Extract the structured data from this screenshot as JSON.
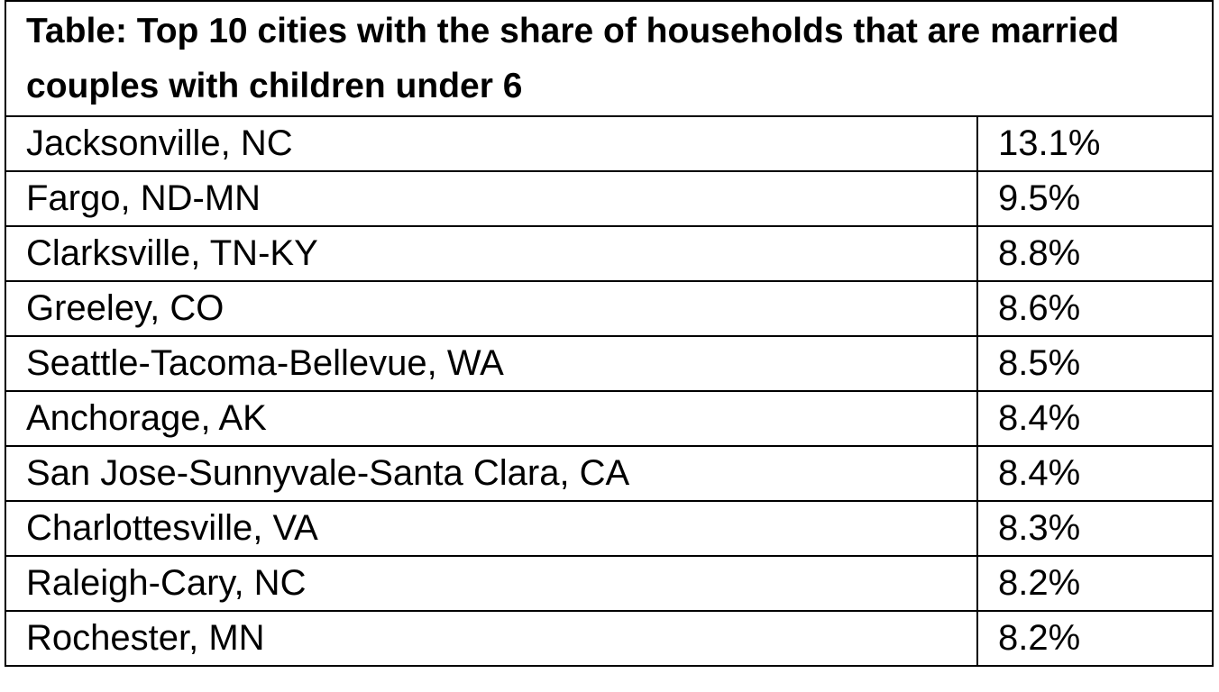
{
  "table": {
    "title": "Table: Top 10 cities with the share of households that are married couples with children under 6",
    "rows": [
      [
        "Jacksonville, NC",
        "13.1%"
      ],
      [
        "Fargo, ND-MN",
        "9.5%"
      ],
      [
        "Clarksville, TN-KY",
        "8.8%"
      ],
      [
        "Greeley, CO",
        "8.6%"
      ],
      [
        "Seattle-Tacoma-Bellevue, WA",
        "8.5%"
      ],
      [
        "Anchorage, AK",
        "8.4%"
      ],
      [
        "San Jose-Sunnyvale-Santa Clara, CA",
        "8.4%"
      ],
      [
        "Charlottesville, VA",
        "8.3%"
      ],
      [
        "Raleigh-Cary, NC",
        "8.2%"
      ],
      [
        "Rochester, MN",
        "8.2%"
      ]
    ]
  }
}
